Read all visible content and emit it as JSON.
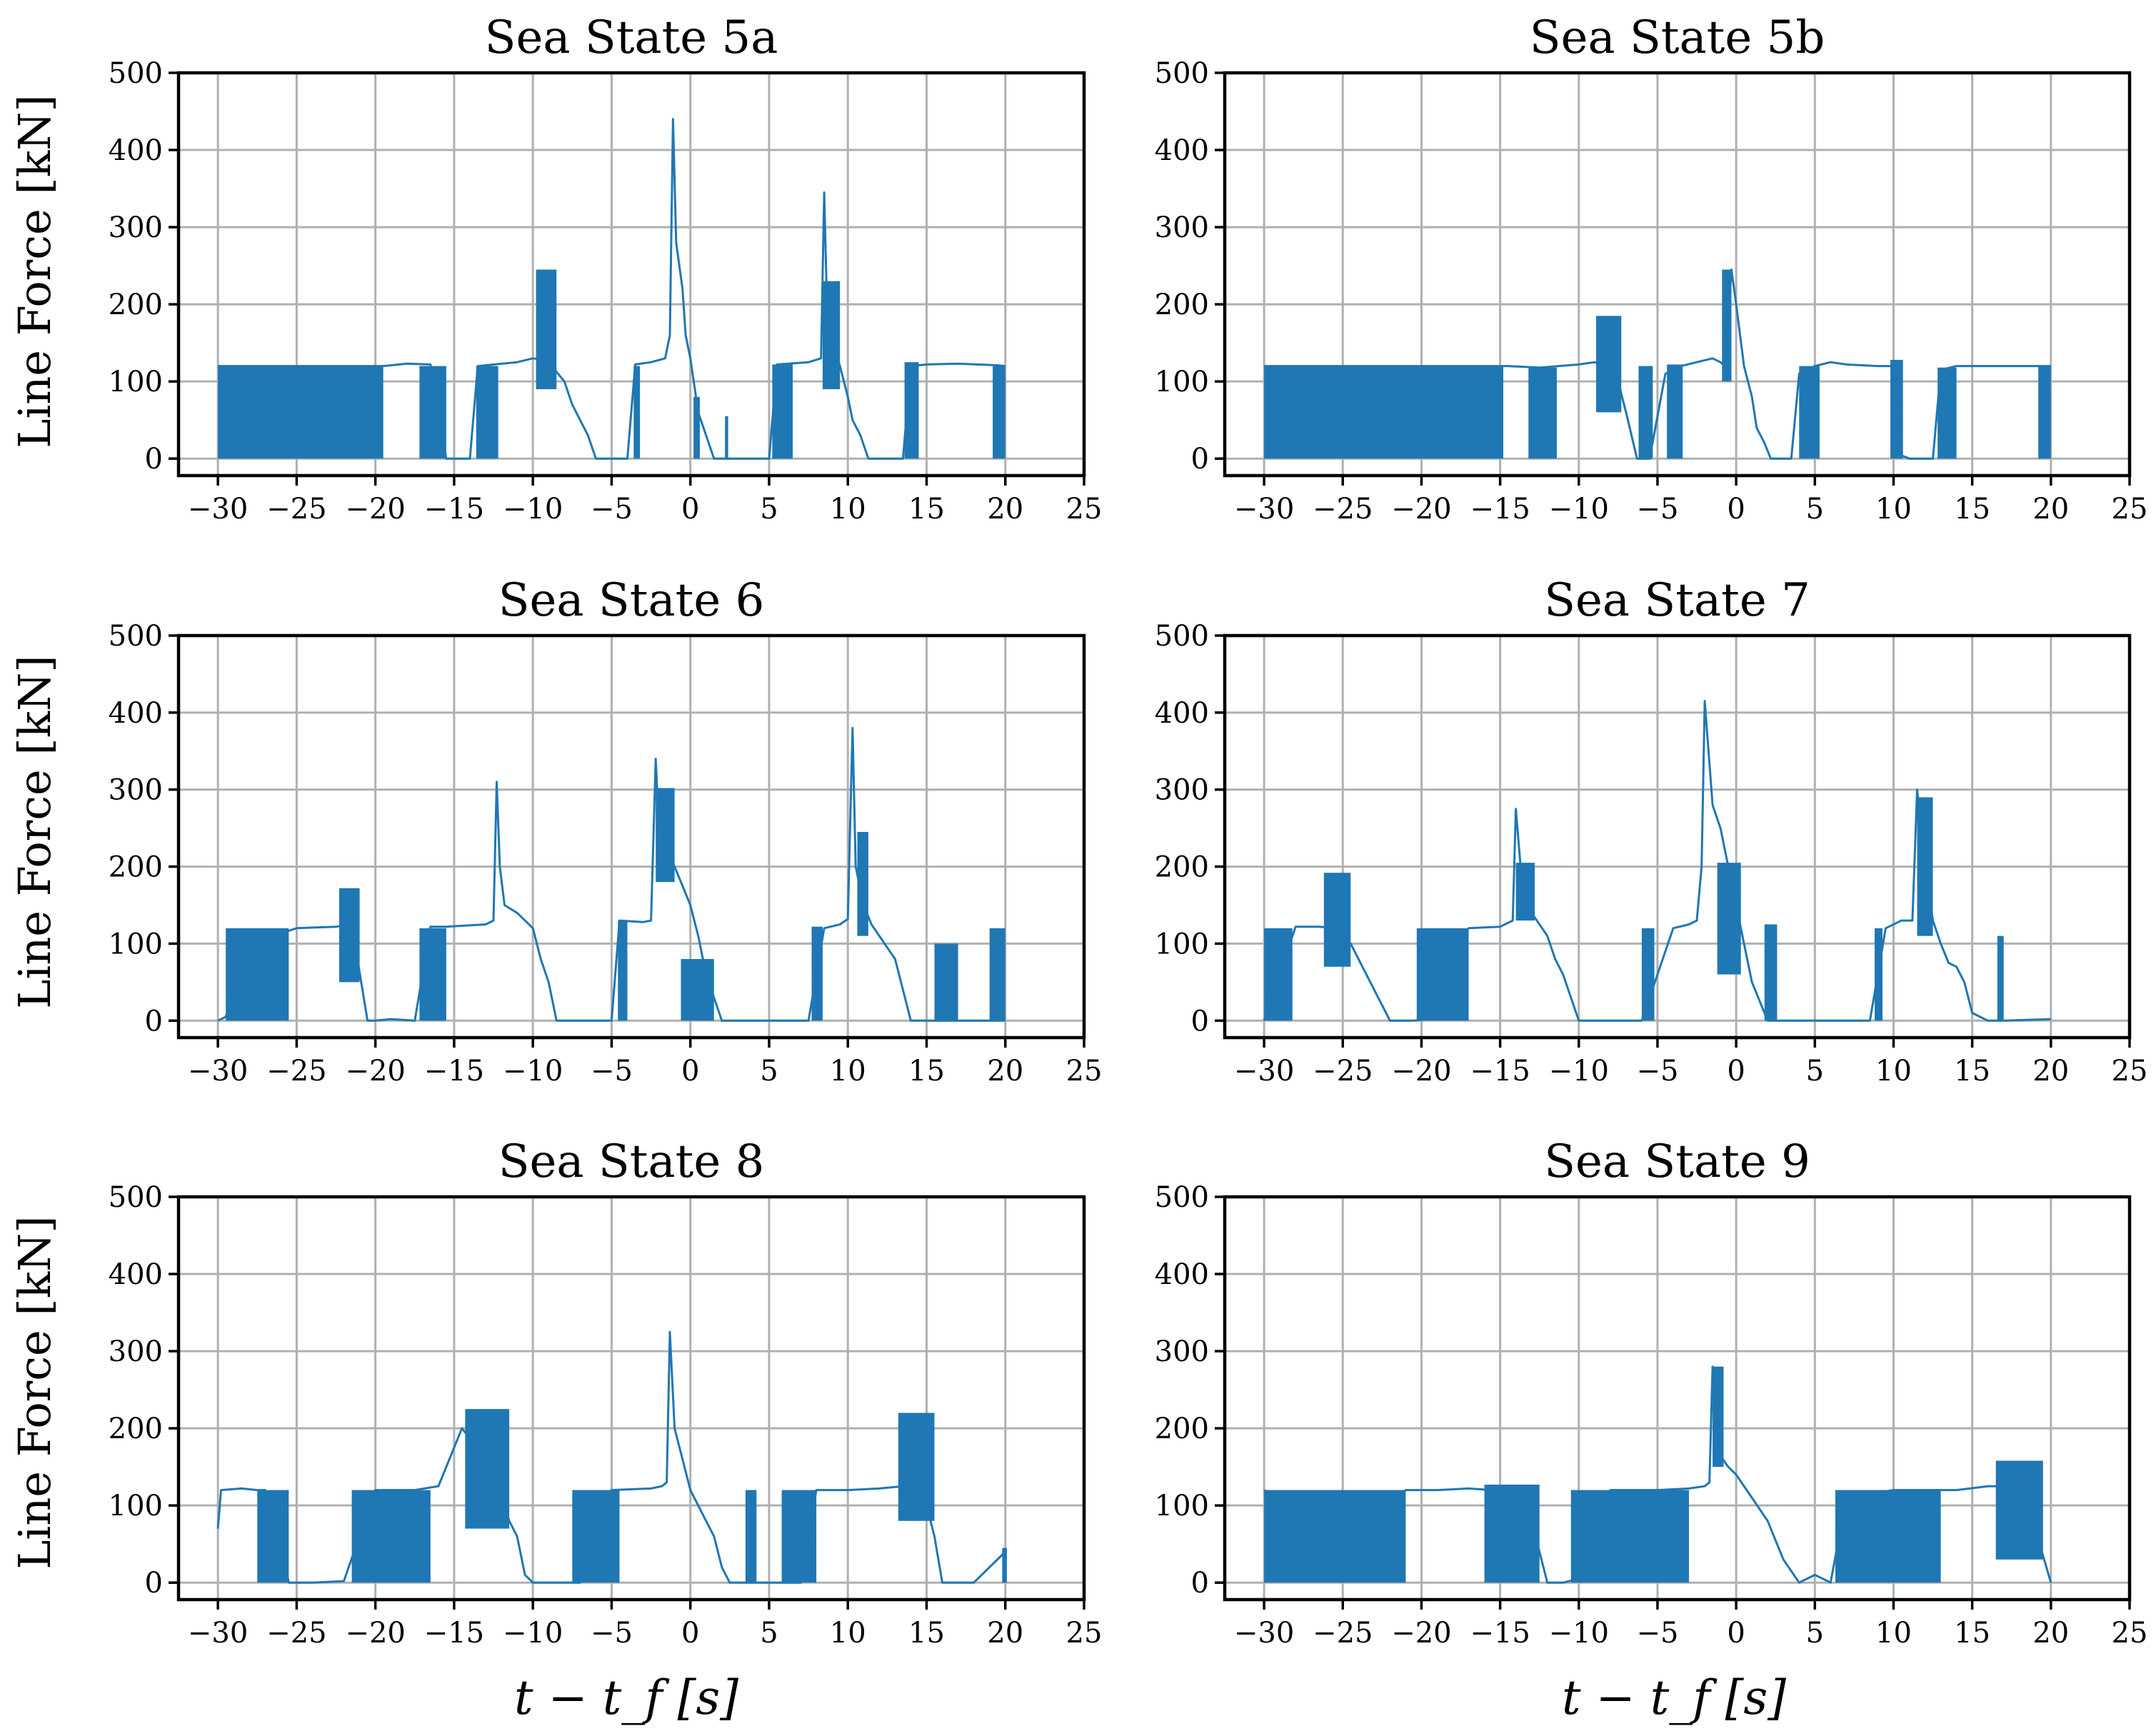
{
  "figure": {
    "x_axis_label": "t − t_f [s]",
    "y_axis_label": "Line Force [kN]",
    "series_color": "#1f77b4"
  },
  "chart_data": [
    {
      "type": "line",
      "title": "Sea State 5a",
      "xlabel": "",
      "ylabel": "Line Force [kN]",
      "xlim": [
        -32.5,
        25
      ],
      "ylim": [
        -22,
        500
      ],
      "xticks": [
        -30,
        -25,
        -20,
        -15,
        -10,
        -5,
        0,
        5,
        10,
        15,
        20,
        25
      ],
      "yticks": [
        0,
        100,
        200,
        300,
        400,
        500
      ],
      "grid": true,
      "line": {
        "x": [
          -30,
          -19.5,
          -18,
          -16.5,
          -15.5,
          -14,
          -13.5,
          -11,
          -10,
          -9.3,
          -9,
          -8.6,
          -8,
          -7.5,
          -6.5,
          -6,
          -4,
          -3.5,
          -2.5,
          -1.6,
          -1.3,
          -1.1,
          -0.9,
          -0.5,
          -0.3,
          0,
          0.5,
          1.5,
          2.5,
          5,
          5.5,
          7.5,
          8.3,
          8.5,
          8.7,
          9,
          9.5,
          10,
          10.3,
          10.8,
          11.3,
          13.5,
          14,
          15,
          17,
          19.5,
          20
        ],
        "y": [
          120,
          120,
          123,
          122,
          0,
          0,
          120,
          125,
          130,
          128,
          118,
          115,
          100,
          70,
          30,
          0,
          0,
          122,
          125,
          130,
          160,
          440,
          280,
          220,
          160,
          130,
          60,
          0,
          0,
          0,
          122,
          125,
          130,
          345,
          180,
          150,
          120,
          80,
          50,
          30,
          0,
          0,
          120,
          122,
          123,
          121,
          120
        ]
      },
      "bands": [
        {
          "x_start": -30,
          "x_end": -19.5,
          "low": 0,
          "high": 120
        },
        {
          "x_start": -17.2,
          "x_end": -15.5,
          "low": 0,
          "high": 120
        },
        {
          "x_start": -13.6,
          "x_end": -12.2,
          "low": 0,
          "high": 120
        },
        {
          "x_start": -9.8,
          "x_end": -8.5,
          "low": 90,
          "high": 245
        },
        {
          "x_start": -3.6,
          "x_end": -3.2,
          "low": 0,
          "high": 120
        },
        {
          "x_start": 0.2,
          "x_end": 0.6,
          "low": 0,
          "high": 80
        },
        {
          "x_start": 2.2,
          "x_end": 2.4,
          "low": 0,
          "high": 55
        },
        {
          "x_start": 5.2,
          "x_end": 6.5,
          "low": 0,
          "high": 122
        },
        {
          "x_start": 8.4,
          "x_end": 9.5,
          "low": 90,
          "high": 230
        },
        {
          "x_start": 13.6,
          "x_end": 14.5,
          "low": 0,
          "high": 125
        },
        {
          "x_start": 19.2,
          "x_end": 20,
          "low": 0,
          "high": 120
        }
      ]
    },
    {
      "type": "line",
      "title": "Sea State 5b",
      "xlabel": "",
      "ylabel": "",
      "xlim": [
        -32.5,
        25
      ],
      "ylim": [
        -22,
        500
      ],
      "xticks": [
        -30,
        -25,
        -20,
        -15,
        -10,
        -5,
        0,
        5,
        10,
        15,
        20,
        25
      ],
      "yticks": [
        0,
        100,
        200,
        300,
        400,
        500
      ],
      "grid": true,
      "line": {
        "x": [
          -30,
          -14.5,
          -12.5,
          -10,
          -9,
          -8,
          -7.5,
          -7,
          -6.3,
          -5.5,
          -4.5,
          -3.5,
          -2.5,
          -1.5,
          -1,
          -0.7,
          -0.3,
          0,
          0.5,
          1,
          1.3,
          1.8,
          2.2,
          3.5,
          4,
          5,
          6,
          7,
          9,
          10,
          10.4,
          11,
          12.5,
          13,
          14,
          15,
          18,
          20
        ],
        "y": [
          120,
          120,
          118,
          122,
          125,
          120,
          100,
          60,
          0,
          0,
          110,
          120,
          125,
          130,
          125,
          120,
          245,
          200,
          120,
          80,
          40,
          20,
          0,
          0,
          110,
          120,
          125,
          122,
          120,
          120,
          5,
          0,
          0,
          115,
          120,
          120,
          120,
          120
        ]
      },
      "bands": [
        {
          "x_start": -30,
          "x_end": -14.8,
          "low": 0,
          "high": 120
        },
        {
          "x_start": -13.2,
          "x_end": -11.4,
          "low": 0,
          "high": 118
        },
        {
          "x_start": -8.9,
          "x_end": -7.3,
          "low": 60,
          "high": 185
        },
        {
          "x_start": -6.2,
          "x_end": -5.3,
          "low": 0,
          "high": 120
        },
        {
          "x_start": -4.4,
          "x_end": -3.4,
          "low": 0,
          "high": 122
        },
        {
          "x_start": -0.9,
          "x_end": -0.3,
          "low": 100,
          "high": 245
        },
        {
          "x_start": 4.0,
          "x_end": 5.3,
          "low": 0,
          "high": 120
        },
        {
          "x_start": 9.8,
          "x_end": 10.6,
          "low": 0,
          "high": 128
        },
        {
          "x_start": 12.8,
          "x_end": 14.0,
          "low": 0,
          "high": 118
        },
        {
          "x_start": 19.2,
          "x_end": 20,
          "low": 0,
          "high": 120
        }
      ]
    },
    {
      "type": "line",
      "title": "Sea State 6",
      "xlabel": "",
      "ylabel": "Line Force [kN]",
      "xlim": [
        -32.5,
        25
      ],
      "ylim": [
        -22,
        500
      ],
      "xticks": [
        -30,
        -25,
        -20,
        -15,
        -10,
        -5,
        0,
        5,
        10,
        15,
        20,
        25
      ],
      "yticks": [
        0,
        100,
        200,
        300,
        400,
        500
      ],
      "grid": true,
      "line": {
        "x": [
          -30,
          -29.5,
          -28,
          -25,
          -22.5,
          -21.5,
          -20.5,
          -20,
          -19,
          -17.5,
          -16.5,
          -15.5,
          -13,
          -12.5,
          -12.3,
          -12.1,
          -11.8,
          -11,
          -10,
          -9.5,
          -9,
          -8.5,
          -7.5,
          -6.5,
          -5,
          -4.5,
          -3,
          -2.5,
          -2.2,
          -2,
          -1.5,
          -1,
          -0.5,
          0,
          0.5,
          1,
          2,
          5,
          7.5,
          8.5,
          9.5,
          10,
          10.3,
          10.5,
          11,
          11.5,
          12,
          12.5,
          13,
          13.5,
          14,
          15,
          18,
          20
        ],
        "y": [
          0,
          5,
          100,
          120,
          122,
          125,
          0,
          0,
          2,
          0,
          122,
          122,
          125,
          130,
          310,
          200,
          150,
          140,
          120,
          80,
          50,
          0,
          0,
          0,
          0,
          130,
          128,
          130,
          340,
          250,
          220,
          200,
          175,
          150,
          110,
          60,
          0,
          0,
          0,
          120,
          125,
          132,
          380,
          200,
          150,
          125,
          110,
          95,
          80,
          40,
          0,
          0,
          0,
          0
        ]
      },
      "bands": [
        {
          "x_start": -29.5,
          "x_end": -25.5,
          "low": 0,
          "high": 120
        },
        {
          "x_start": -22.3,
          "x_end": -21.0,
          "low": 50,
          "high": 172
        },
        {
          "x_start": -17.2,
          "x_end": -15.5,
          "low": 0,
          "high": 120
        },
        {
          "x_start": -4.6,
          "x_end": -4.0,
          "low": 0,
          "high": 130
        },
        {
          "x_start": -2.2,
          "x_end": -1.0,
          "low": 180,
          "high": 302
        },
        {
          "x_start": -0.6,
          "x_end": 1.5,
          "low": 0,
          "high": 80
        },
        {
          "x_start": 7.7,
          "x_end": 8.4,
          "low": 0,
          "high": 122
        },
        {
          "x_start": 10.6,
          "x_end": 11.3,
          "low": 110,
          "high": 245
        },
        {
          "x_start": 15.5,
          "x_end": 17.0,
          "low": 0,
          "high": 100
        },
        {
          "x_start": 19.0,
          "x_end": 20,
          "low": 0,
          "high": 120
        }
      ]
    },
    {
      "type": "line",
      "title": "Sea State 7",
      "xlabel": "",
      "ylabel": "",
      "xlim": [
        -32.5,
        25
      ],
      "ylim": [
        -22,
        500
      ],
      "xticks": [
        -30,
        -25,
        -20,
        -15,
        -10,
        -5,
        0,
        5,
        10,
        15,
        20,
        25
      ],
      "yticks": [
        0,
        100,
        200,
        300,
        400,
        500
      ],
      "grid": true,
      "line": {
        "x": [
          -30,
          -28,
          -26.5,
          -25.5,
          -24.5,
          -23.5,
          -22,
          -20.5,
          -19.5,
          -18,
          -17,
          -15,
          -14.2,
          -14,
          -13.5,
          -13,
          -12,
          -11.5,
          -11,
          -10,
          -7,
          -6,
          -4,
          -3,
          -2.5,
          -2.2,
          -2,
          -1.5,
          -1,
          -0.5,
          0,
          0.5,
          1,
          2,
          3,
          8.5,
          9.5,
          10.5,
          11.2,
          11.5,
          12,
          12.5,
          13,
          13.5,
          14,
          14.5,
          15,
          16,
          17,
          20
        ],
        "y": [
          0,
          122,
          122,
          120,
          100,
          60,
          0,
          0,
          2,
          100,
          120,
          122,
          130,
          275,
          150,
          140,
          110,
          80,
          60,
          0,
          0,
          0,
          120,
          125,
          130,
          200,
          415,
          280,
          250,
          200,
          150,
          100,
          50,
          0,
          0,
          0,
          120,
          130,
          130,
          300,
          200,
          130,
          100,
          75,
          70,
          50,
          10,
          0,
          0,
          2
        ]
      },
      "bands": [
        {
          "x_start": -30,
          "x_end": -28.2,
          "low": 0,
          "high": 120
        },
        {
          "x_start": -26.2,
          "x_end": -24.5,
          "low": 70,
          "high": 192
        },
        {
          "x_start": -20.3,
          "x_end": -17.0,
          "low": 0,
          "high": 120
        },
        {
          "x_start": -14.0,
          "x_end": -12.8,
          "low": 130,
          "high": 205
        },
        {
          "x_start": -6.0,
          "x_end": -5.2,
          "low": 0,
          "high": 120
        },
        {
          "x_start": -1.2,
          "x_end": 0.3,
          "low": 60,
          "high": 205
        },
        {
          "x_start": 1.8,
          "x_end": 2.6,
          "low": 0,
          "high": 125
        },
        {
          "x_start": 8.8,
          "x_end": 9.3,
          "low": 0,
          "high": 120
        },
        {
          "x_start": 11.5,
          "x_end": 12.5,
          "low": 110,
          "high": 290
        },
        {
          "x_start": 16.6,
          "x_end": 17.0,
          "low": 0,
          "high": 110
        }
      ]
    },
    {
      "type": "line",
      "title": "Sea State 8",
      "xlabel": "t − t_f [s]",
      "ylabel": "Line Force [kN]",
      "xlim": [
        -32.5,
        25
      ],
      "ylim": [
        -22,
        500
      ],
      "xticks": [
        -30,
        -25,
        -20,
        -15,
        -10,
        -5,
        0,
        5,
        10,
        15,
        20,
        25
      ],
      "yticks": [
        0,
        100,
        200,
        300,
        400,
        500
      ],
      "grid": true,
      "line": {
        "x": [
          -30,
          -29.8,
          -28.5,
          -27.5,
          -27,
          -26.5,
          -25.5,
          -24,
          -22,
          -20,
          -17.5,
          -16,
          -14.5,
          -13,
          -12,
          -11.5,
          -11,
          -10.5,
          -10,
          -8,
          -7,
          -5,
          -2.5,
          -1.8,
          -1.5,
          -1.3,
          -1,
          -0.5,
          0,
          0.5,
          1,
          1.5,
          2,
          2.5,
          4,
          5,
          7,
          8,
          10,
          12,
          13.5,
          14.5,
          15,
          15.5,
          16,
          18,
          20
        ],
        "y": [
          70,
          120,
          122,
          120,
          120,
          100,
          0,
          0,
          2,
          120,
          120,
          125,
          200,
          160,
          110,
          80,
          60,
          10,
          0,
          0,
          0,
          120,
          122,
          125,
          130,
          325,
          200,
          160,
          120,
          100,
          80,
          60,
          20,
          0,
          0,
          0,
          0,
          120,
          120,
          122,
          125,
          180,
          100,
          60,
          0,
          0,
          40
        ]
      },
      "bands": [
        {
          "x_start": -27.5,
          "x_end": -25.5,
          "low": 0,
          "high": 120
        },
        {
          "x_start": -21.5,
          "x_end": -16.5,
          "low": 0,
          "high": 120
        },
        {
          "x_start": -14.3,
          "x_end": -11.5,
          "low": 70,
          "high": 225
        },
        {
          "x_start": -7.5,
          "x_end": -4.5,
          "low": 0,
          "high": 120
        },
        {
          "x_start": 3.5,
          "x_end": 4.2,
          "low": 0,
          "high": 120
        },
        {
          "x_start": 5.8,
          "x_end": 8.0,
          "low": 0,
          "high": 120
        },
        {
          "x_start": 13.2,
          "x_end": 15.5,
          "low": 80,
          "high": 220
        },
        {
          "x_start": 19.8,
          "x_end": 20.1,
          "low": 0,
          "high": 45
        }
      ]
    },
    {
      "type": "line",
      "title": "Sea State 9",
      "xlabel": "t − t_f [s]",
      "ylabel": "",
      "xlim": [
        -32.5,
        25
      ],
      "ylim": [
        -22,
        500
      ],
      "xticks": [
        -30,
        -25,
        -20,
        -15,
        -10,
        -5,
        0,
        5,
        10,
        15,
        20,
        25
      ],
      "yticks": [
        0,
        100,
        200,
        300,
        400,
        500
      ],
      "grid": true,
      "line": {
        "x": [
          -30,
          -27,
          -26,
          -25,
          -24,
          -22,
          -21,
          -19,
          -17,
          -15.5,
          -15,
          -14,
          -13,
          -12,
          -11,
          -9,
          -8,
          -5,
          -3,
          -2,
          -1.7,
          -1.5,
          -1.2,
          -0.5,
          0,
          1,
          2,
          3,
          4,
          5,
          6,
          7,
          10,
          13,
          14,
          16,
          16.5,
          17,
          18,
          19,
          20
        ],
        "y": [
          120,
          80,
          60,
          50,
          60,
          100,
          120,
          120,
          122,
          120,
          125,
          120,
          80,
          0,
          0,
          10,
          120,
          120,
          122,
          125,
          130,
          280,
          170,
          150,
          140,
          110,
          80,
          30,
          0,
          10,
          0,
          110,
          120,
          120,
          120,
          125,
          125,
          130,
          145,
          70,
          0
        ]
      },
      "bands": [
        {
          "x_start": -30,
          "x_end": -21.0,
          "low": 0,
          "high": 120
        },
        {
          "x_start": -16.0,
          "x_end": -12.5,
          "low": 0,
          "high": 127
        },
        {
          "x_start": -10.5,
          "x_end": -3.0,
          "low": 0,
          "high": 120
        },
        {
          "x_start": -1.5,
          "x_end": -0.8,
          "low": 150,
          "high": 280
        },
        {
          "x_start": 6.3,
          "x_end": 13.0,
          "low": 0,
          "high": 120
        },
        {
          "x_start": 16.5,
          "x_end": 19.5,
          "low": 30,
          "high": 158
        }
      ]
    }
  ]
}
